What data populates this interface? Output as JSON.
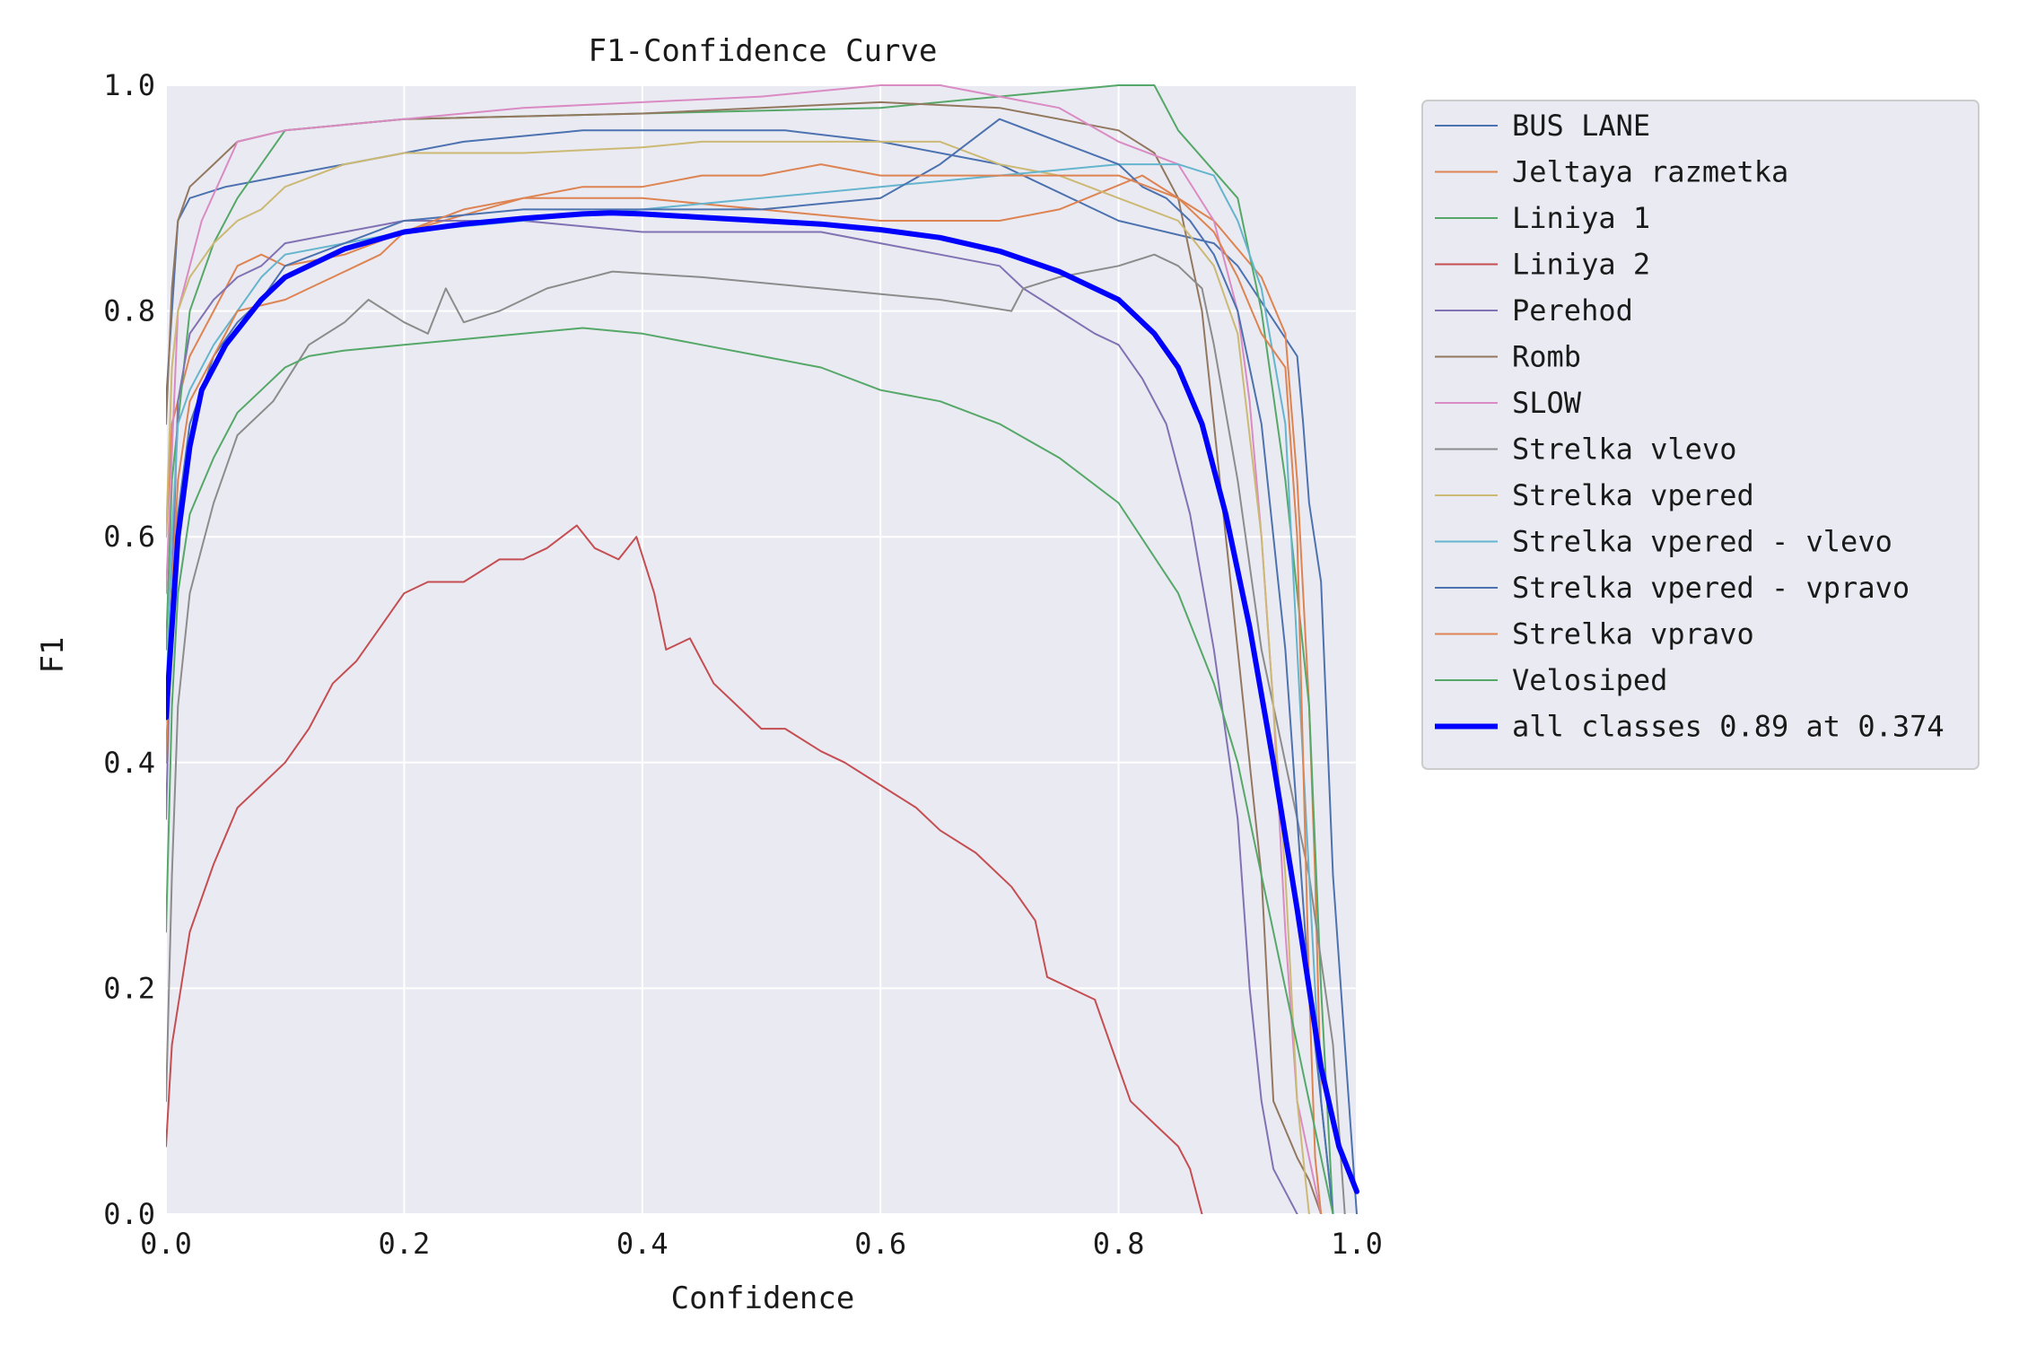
{
  "chart_data": {
    "type": "line",
    "title": "F1-Confidence Curve",
    "xlabel": "Confidence",
    "ylabel": "F1",
    "xlim": [
      0,
      1
    ],
    "ylim": [
      0,
      1
    ],
    "grid": true,
    "legend_position": "outside-right",
    "x_ticks": [
      "0.0",
      "0.2",
      "0.4",
      "0.6",
      "0.8",
      "1.0"
    ],
    "y_ticks": [
      "0.0",
      "0.2",
      "0.4",
      "0.6",
      "0.8",
      "1.0"
    ],
    "series": [
      {
        "name": "BUS LANE",
        "color": "#4c72b0",
        "width": 2,
        "x": [
          0,
          0.01,
          0.02,
          0.05,
          0.1,
          0.15,
          0.25,
          0.35,
          0.45,
          0.52,
          0.6,
          0.7,
          0.8,
          0.88,
          0.9,
          0.95,
          0.955,
          0.96,
          0.97,
          0.98,
          0.99,
          1.0
        ],
        "y": [
          0.72,
          0.88,
          0.9,
          0.91,
          0.92,
          0.93,
          0.95,
          0.96,
          0.96,
          0.96,
          0.95,
          0.93,
          0.88,
          0.86,
          0.84,
          0.76,
          0.7,
          0.63,
          0.56,
          0.3,
          0.15,
          0.0
        ]
      },
      {
        "name": "Jeltaya razmetka",
        "color": "#dd8452",
        "width": 2,
        "x": [
          0,
          0.005,
          0.02,
          0.04,
          0.06,
          0.08,
          0.1,
          0.15,
          0.2,
          0.3,
          0.4,
          0.5,
          0.6,
          0.7,
          0.75,
          0.82,
          0.88,
          0.92,
          0.94,
          0.95,
          0.96,
          0.965,
          0.97,
          0.98
        ],
        "y": [
          0.6,
          0.7,
          0.76,
          0.8,
          0.84,
          0.85,
          0.84,
          0.85,
          0.87,
          0.9,
          0.9,
          0.89,
          0.88,
          0.88,
          0.89,
          0.92,
          0.88,
          0.83,
          0.78,
          0.65,
          0.45,
          0.3,
          0.1,
          0.0
        ]
      },
      {
        "name": "Liniya 1",
        "color": "#55a868",
        "width": 2,
        "x": [
          0,
          0.005,
          0.02,
          0.04,
          0.06,
          0.1,
          0.2,
          0.4,
          0.6,
          0.8,
          0.83,
          0.85,
          0.9,
          0.92,
          0.94,
          0.96,
          0.97,
          0.98
        ],
        "y": [
          0.5,
          0.65,
          0.8,
          0.86,
          0.9,
          0.96,
          0.97,
          0.975,
          0.98,
          1.0,
          1.0,
          0.96,
          0.9,
          0.8,
          0.65,
          0.45,
          0.2,
          0.0
        ]
      },
      {
        "name": "Liniya 2",
        "color": "#c44e52",
        "width": 2,
        "x": [
          0,
          0.005,
          0.02,
          0.04,
          0.06,
          0.08,
          0.1,
          0.12,
          0.14,
          0.16,
          0.18,
          0.2,
          0.22,
          0.25,
          0.28,
          0.3,
          0.32,
          0.345,
          0.36,
          0.38,
          0.395,
          0.41,
          0.42,
          0.44,
          0.46,
          0.48,
          0.5,
          0.52,
          0.55,
          0.57,
          0.6,
          0.63,
          0.65,
          0.68,
          0.71,
          0.73,
          0.74,
          0.78,
          0.79,
          0.8,
          0.81,
          0.83,
          0.85,
          0.86,
          0.87
        ],
        "y": [
          0.06,
          0.15,
          0.25,
          0.31,
          0.36,
          0.38,
          0.4,
          0.43,
          0.47,
          0.49,
          0.52,
          0.55,
          0.56,
          0.56,
          0.58,
          0.58,
          0.59,
          0.61,
          0.59,
          0.58,
          0.6,
          0.55,
          0.5,
          0.51,
          0.47,
          0.45,
          0.43,
          0.43,
          0.41,
          0.4,
          0.38,
          0.36,
          0.34,
          0.32,
          0.29,
          0.26,
          0.21,
          0.19,
          0.16,
          0.13,
          0.1,
          0.08,
          0.06,
          0.04,
          0.0
        ]
      },
      {
        "name": "Perehod",
        "color": "#8172b3",
        "width": 2,
        "x": [
          0,
          0.005,
          0.01,
          0.02,
          0.04,
          0.06,
          0.08,
          0.1,
          0.15,
          0.2,
          0.3,
          0.4,
          0.5,
          0.55,
          0.6,
          0.65,
          0.7,
          0.72,
          0.75,
          0.78,
          0.8,
          0.82,
          0.84,
          0.86,
          0.88,
          0.9,
          0.91,
          0.92,
          0.93,
          0.94,
          0.95
        ],
        "y": [
          0.35,
          0.55,
          0.72,
          0.78,
          0.81,
          0.83,
          0.84,
          0.86,
          0.87,
          0.88,
          0.88,
          0.87,
          0.87,
          0.87,
          0.86,
          0.85,
          0.84,
          0.82,
          0.8,
          0.78,
          0.77,
          0.74,
          0.7,
          0.62,
          0.5,
          0.35,
          0.2,
          0.1,
          0.04,
          0.02,
          0.0
        ]
      },
      {
        "name": "Romb",
        "color": "#937860",
        "width": 2,
        "x": [
          0,
          0.005,
          0.01,
          0.02,
          0.04,
          0.06,
          0.1,
          0.2,
          0.4,
          0.6,
          0.7,
          0.75,
          0.8,
          0.83,
          0.85,
          0.87,
          0.88,
          0.9,
          0.92,
          0.93,
          0.95,
          0.96,
          0.97
        ],
        "y": [
          0.7,
          0.82,
          0.88,
          0.91,
          0.93,
          0.95,
          0.96,
          0.97,
          0.975,
          0.985,
          0.98,
          0.97,
          0.96,
          0.94,
          0.9,
          0.8,
          0.7,
          0.5,
          0.3,
          0.1,
          0.05,
          0.03,
          0.0
        ]
      },
      {
        "name": "SLOW",
        "color": "#da8bc3",
        "width": 2,
        "x": [
          0,
          0.01,
          0.03,
          0.06,
          0.1,
          0.2,
          0.3,
          0.4,
          0.5,
          0.6,
          0.65,
          0.75,
          0.8,
          0.85,
          0.88,
          0.9,
          0.91,
          0.92,
          0.93,
          0.94,
          0.95,
          0.96,
          0.97
        ],
        "y": [
          0.55,
          0.8,
          0.88,
          0.95,
          0.96,
          0.97,
          0.98,
          0.985,
          0.99,
          1.0,
          1.0,
          0.98,
          0.95,
          0.93,
          0.88,
          0.8,
          0.72,
          0.6,
          0.45,
          0.25,
          0.1,
          0.05,
          0.0
        ]
      },
      {
        "name": "Strelka vlevo",
        "color": "#8c8c8c",
        "width": 2,
        "x": [
          0,
          0.005,
          0.01,
          0.02,
          0.04,
          0.06,
          0.09,
          0.12,
          0.15,
          0.17,
          0.2,
          0.22,
          0.235,
          0.25,
          0.28,
          0.32,
          0.375,
          0.45,
          0.55,
          0.65,
          0.71,
          0.72,
          0.75,
          0.8,
          0.83,
          0.85,
          0.87,
          0.88,
          0.9,
          0.92,
          0.94,
          0.96,
          0.98,
          0.99
        ],
        "y": [
          0.1,
          0.3,
          0.45,
          0.55,
          0.63,
          0.69,
          0.72,
          0.77,
          0.79,
          0.81,
          0.79,
          0.78,
          0.82,
          0.79,
          0.8,
          0.82,
          0.835,
          0.83,
          0.82,
          0.81,
          0.8,
          0.82,
          0.83,
          0.84,
          0.85,
          0.84,
          0.82,
          0.77,
          0.65,
          0.5,
          0.4,
          0.3,
          0.15,
          0.0
        ]
      },
      {
        "name": "Strelka vpered",
        "color": "#ccb974",
        "width": 2,
        "x": [
          0,
          0.005,
          0.01,
          0.02,
          0.04,
          0.06,
          0.08,
          0.1,
          0.15,
          0.2,
          0.3,
          0.4,
          0.45,
          0.5,
          0.55,
          0.6,
          0.65,
          0.7,
          0.75,
          0.8,
          0.85,
          0.88,
          0.9,
          0.92,
          0.94,
          0.95,
          0.96
        ],
        "y": [
          0.6,
          0.75,
          0.8,
          0.83,
          0.86,
          0.88,
          0.89,
          0.91,
          0.93,
          0.94,
          0.94,
          0.945,
          0.95,
          0.95,
          0.95,
          0.95,
          0.95,
          0.93,
          0.92,
          0.9,
          0.88,
          0.84,
          0.78,
          0.6,
          0.3,
          0.1,
          0.0
        ]
      },
      {
        "name": "Strelka vpered - vlevo",
        "color": "#64b5cd",
        "width": 2,
        "x": [
          0,
          0.005,
          0.01,
          0.02,
          0.04,
          0.06,
          0.08,
          0.1,
          0.15,
          0.2,
          0.3,
          0.4,
          0.5,
          0.6,
          0.7,
          0.8,
          0.85,
          0.88,
          0.9,
          0.92,
          0.94,
          0.95,
          0.96,
          0.97,
          0.98
        ],
        "y": [
          0.45,
          0.6,
          0.7,
          0.73,
          0.77,
          0.8,
          0.83,
          0.85,
          0.86,
          0.87,
          0.88,
          0.89,
          0.9,
          0.91,
          0.92,
          0.93,
          0.93,
          0.92,
          0.88,
          0.82,
          0.7,
          0.5,
          0.3,
          0.1,
          0.0
        ]
      },
      {
        "name": "Strelka vpered - vpravo",
        "color": "#4c72b0",
        "width": 2,
        "x": [
          0,
          0.005,
          0.01,
          0.02,
          0.04,
          0.06,
          0.08,
          0.1,
          0.15,
          0.2,
          0.3,
          0.4,
          0.5,
          0.6,
          0.65,
          0.7,
          0.75,
          0.8,
          0.82,
          0.84,
          0.86,
          0.88,
          0.9,
          0.92,
          0.94,
          0.96,
          0.97,
          0.98
        ],
        "y": [
          0.4,
          0.55,
          0.62,
          0.7,
          0.76,
          0.79,
          0.81,
          0.84,
          0.86,
          0.88,
          0.89,
          0.89,
          0.89,
          0.9,
          0.93,
          0.97,
          0.95,
          0.93,
          0.91,
          0.9,
          0.88,
          0.85,
          0.8,
          0.7,
          0.5,
          0.2,
          0.1,
          0.0
        ]
      },
      {
        "name": "Strelka vpravo",
        "color": "#dd8452",
        "width": 2,
        "x": [
          0,
          0.005,
          0.01,
          0.02,
          0.04,
          0.06,
          0.1,
          0.12,
          0.14,
          0.16,
          0.18,
          0.2,
          0.25,
          0.3,
          0.35,
          0.4,
          0.45,
          0.5,
          0.55,
          0.6,
          0.65,
          0.7,
          0.75,
          0.8,
          0.85,
          0.88,
          0.9,
          0.92,
          0.94,
          0.95,
          0.955,
          0.96,
          0.965,
          0.97
        ],
        "y": [
          0.4,
          0.55,
          0.65,
          0.72,
          0.76,
          0.8,
          0.81,
          0.82,
          0.83,
          0.84,
          0.85,
          0.87,
          0.89,
          0.9,
          0.91,
          0.91,
          0.92,
          0.92,
          0.93,
          0.92,
          0.92,
          0.92,
          0.92,
          0.92,
          0.9,
          0.87,
          0.83,
          0.78,
          0.75,
          0.6,
          0.4,
          0.2,
          0.05,
          0.0
        ]
      },
      {
        "name": "Velosiped",
        "color": "#55a868",
        "width": 2,
        "x": [
          0,
          0.005,
          0.01,
          0.02,
          0.04,
          0.06,
          0.08,
          0.1,
          0.12,
          0.15,
          0.2,
          0.25,
          0.3,
          0.35,
          0.4,
          0.45,
          0.5,
          0.55,
          0.6,
          0.65,
          0.7,
          0.75,
          0.8,
          0.85,
          0.88,
          0.9,
          0.92,
          0.94,
          0.95,
          0.96,
          0.97,
          0.98
        ],
        "y": [
          0.25,
          0.45,
          0.55,
          0.62,
          0.67,
          0.71,
          0.73,
          0.75,
          0.76,
          0.765,
          0.77,
          0.775,
          0.78,
          0.785,
          0.78,
          0.77,
          0.76,
          0.75,
          0.73,
          0.72,
          0.7,
          0.67,
          0.63,
          0.55,
          0.47,
          0.4,
          0.3,
          0.2,
          0.15,
          0.1,
          0.05,
          0.0
        ]
      },
      {
        "name": "all classes 0.89 at 0.374",
        "color": "#0000ff",
        "width": 6,
        "x": [
          0,
          0.01,
          0.02,
          0.03,
          0.05,
          0.08,
          0.1,
          0.15,
          0.2,
          0.25,
          0.3,
          0.35,
          0.374,
          0.4,
          0.45,
          0.5,
          0.55,
          0.6,
          0.65,
          0.7,
          0.75,
          0.8,
          0.83,
          0.85,
          0.87,
          0.89,
          0.91,
          0.93,
          0.95,
          0.97,
          0.985,
          1.0
        ],
        "y": [
          0.44,
          0.6,
          0.68,
          0.73,
          0.77,
          0.81,
          0.83,
          0.855,
          0.87,
          0.877,
          0.882,
          0.886,
          0.887,
          0.886,
          0.883,
          0.88,
          0.877,
          0.872,
          0.865,
          0.853,
          0.835,
          0.81,
          0.78,
          0.75,
          0.7,
          0.62,
          0.52,
          0.4,
          0.27,
          0.13,
          0.06,
          0.02
        ]
      }
    ]
  }
}
